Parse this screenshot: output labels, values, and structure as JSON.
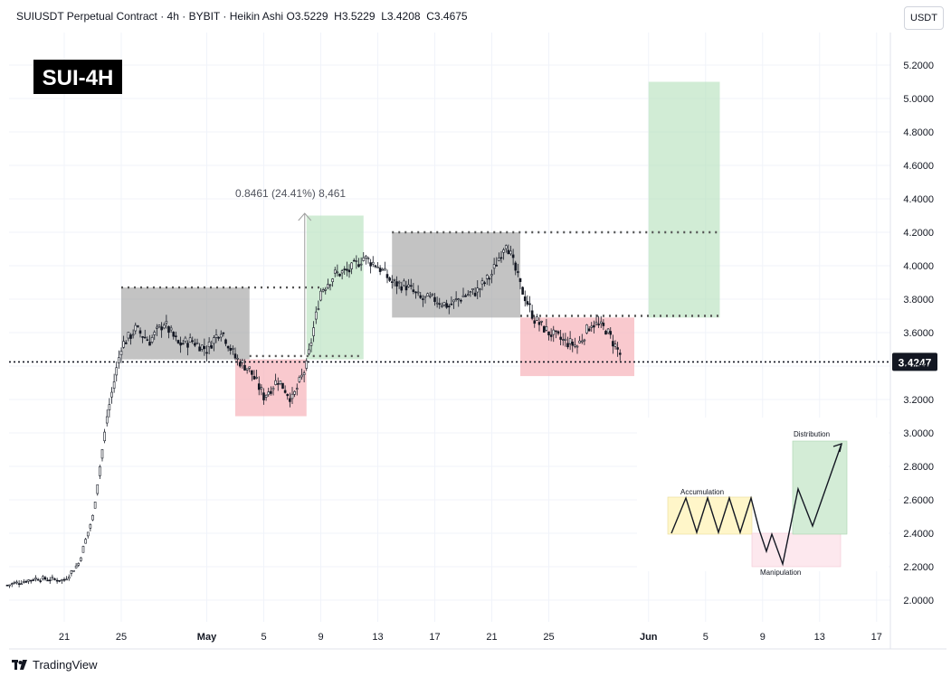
{
  "header": {
    "symbol": "SUIUSDT Perpetual Contract",
    "interval": "4h",
    "exchange": "BYBIT",
    "chart_style": "Heikin Ashi",
    "ohlc": "O3.5229  H3.5229  L3.4208  C3.4675"
  },
  "currency_button": "USDT",
  "brand": "TradingView",
  "badge_title": "SUI-4H",
  "measure_label": "0.8461 (24.41%) 8,461",
  "current_price_label": "3.4247",
  "inset_labels": {
    "accumulation": "Accumulation",
    "manipulation": "Manipulation",
    "distribution": "Distribution"
  },
  "colors": {
    "candle": "#131722",
    "gray_zone": "#9e9e9e",
    "red_zone": "#f7b7bd",
    "green_zone": "#b8e2bf",
    "yellow_zone": "#fff6c9"
  },
  "chart_data": {
    "type": "candlestick",
    "chart_style": "Heikin Ashi",
    "interval": "4h",
    "y_axis_ticks": [
      "2.0000",
      "2.2000",
      "2.4000",
      "2.6000",
      "2.8000",
      "3.0000",
      "3.2000",
      "3.4000",
      "3.6000",
      "3.8000",
      "4.0000",
      "4.2000",
      "4.4000",
      "4.6000",
      "4.8000",
      "5.0000",
      "5.2000"
    ],
    "x_axis_ticks": [
      "21",
      "25",
      "May",
      "5",
      "9",
      "13",
      "17",
      "21",
      "25",
      "Jun",
      "5",
      "9",
      "13",
      "17"
    ],
    "ylim": [
      1.95,
      5.35
    ],
    "price_path": [
      [
        "Apr 17",
        2.09
      ],
      [
        "Apr 19",
        2.13
      ],
      [
        "Apr 21",
        2.12
      ],
      [
        "Apr 22",
        2.22
      ],
      [
        "Apr 23",
        2.5
      ],
      [
        "Apr 24",
        3.1
      ],
      [
        "Apr 25",
        3.52
      ],
      [
        "Apr 26",
        3.62
      ],
      [
        "Apr 27",
        3.55
      ],
      [
        "Apr 28",
        3.66
      ],
      [
        "Apr 29",
        3.53
      ],
      [
        "Apr 30",
        3.55
      ],
      [
        "May 1",
        3.5
      ],
      [
        "May 2",
        3.62
      ],
      [
        "May 3",
        3.45
      ],
      [
        "May 4",
        3.38
      ],
      [
        "May 5",
        3.22
      ],
      [
        "May 6",
        3.32
      ],
      [
        "May 7",
        3.2
      ],
      [
        "May 8",
        3.4
      ],
      [
        "May 9",
        3.85
      ],
      [
        "May 10",
        3.95
      ],
      [
        "May 11",
        3.97
      ],
      [
        "May 12",
        4.05
      ],
      [
        "May 13",
        4.0
      ],
      [
        "May 14",
        3.9
      ],
      [
        "May 15",
        3.88
      ],
      [
        "May 16",
        3.8
      ],
      [
        "May 17",
        3.8
      ],
      [
        "May 18",
        3.76
      ],
      [
        "May 19",
        3.82
      ],
      [
        "May 20",
        3.85
      ],
      [
        "May 21",
        3.95
      ],
      [
        "May 22",
        4.15
      ],
      [
        "May 23",
        3.88
      ],
      [
        "May 24",
        3.68
      ],
      [
        "May 25",
        3.6
      ],
      [
        "May 26",
        3.55
      ],
      [
        "May 27",
        3.52
      ],
      [
        "May 28",
        3.66
      ],
      [
        "May 29",
        3.62
      ],
      [
        "May 30",
        3.47
      ]
    ],
    "current_price": 3.4247,
    "measurement": {
      "from": 3.4675,
      "to": 4.3136,
      "label": "0.8461 (24.41%) 8,461"
    },
    "zones": [
      {
        "color": "gray",
        "start": "Apr 25",
        "end": "May 4",
        "low": 3.44,
        "high": 3.87
      },
      {
        "color": "red",
        "start": "May 3",
        "end": "May 8",
        "low": 3.1,
        "high": 3.44
      },
      {
        "color": "green",
        "start": "May 8",
        "end": "May 12",
        "low": 3.44,
        "high": 4.3
      },
      {
        "color": "gray",
        "start": "May 14",
        "end": "May 23",
        "low": 3.69,
        "high": 4.2
      },
      {
        "color": "red",
        "start": "May 23",
        "end": "May 31",
        "low": 3.34,
        "high": 3.69
      },
      {
        "color": "green",
        "start": "Jun 1",
        "end": "Jun 6",
        "low": 3.69,
        "high": 5.1
      }
    ],
    "dotted_levels": [
      {
        "price": 3.87,
        "start": "Apr 25",
        "end": "May 9"
      },
      {
        "price": 3.46,
        "start": "May 4",
        "end": "May 12"
      },
      {
        "price": 4.2,
        "start": "May 14",
        "end": "Jun 6"
      },
      {
        "price": 3.7,
        "start": "May 23",
        "end": "Jun 6"
      },
      {
        "price": 3.4247,
        "start": "Apr 17",
        "end": "Jun 20"
      }
    ]
  }
}
